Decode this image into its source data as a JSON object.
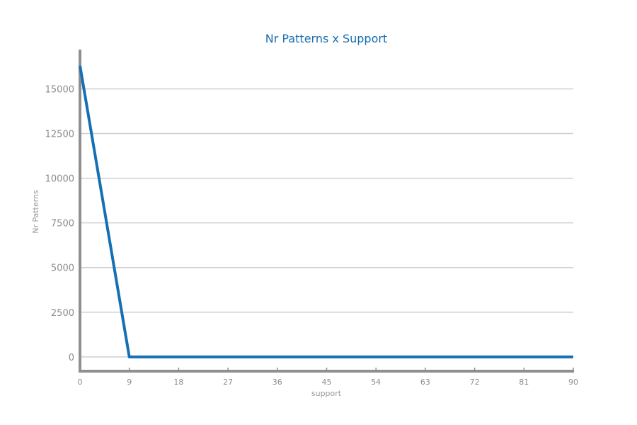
{
  "chart_data": {
    "type": "line",
    "title": "Nr Patterns x Support",
    "xlabel": "support",
    "ylabel": "Nr Patterns",
    "x_ticks": [
      "0",
      "9",
      "18",
      "27",
      "36",
      "45",
      "54",
      "63",
      "72",
      "81",
      "90"
    ],
    "y_ticks": [
      "0",
      "2500",
      "5000",
      "7500",
      "10000",
      "12500",
      "15000"
    ],
    "xlim": [
      0,
      90
    ],
    "ylim": [
      -800,
      17200
    ],
    "grid": "horizontal",
    "series": [
      {
        "color": "#1470b3",
        "x": [
          0,
          9,
          18,
          27,
          36,
          45,
          54,
          63,
          72,
          81,
          90
        ],
        "y": [
          16300,
          0,
          0,
          0,
          0,
          0,
          0,
          0,
          0,
          0,
          0
        ]
      }
    ]
  },
  "colors": {
    "line": "#1470b3",
    "title": "#1a6fb0",
    "axis": "#8f8f8f",
    "grid": "#cfcfcf",
    "tick_text": "#8c8c8c"
  }
}
